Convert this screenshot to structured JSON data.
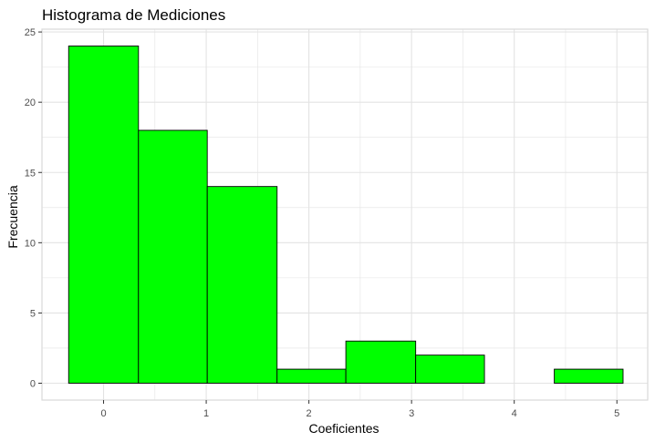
{
  "chart_data": {
    "type": "bar",
    "title": "Histograma de Mediciones",
    "xlabel": "Coeficientes",
    "ylabel": "Frecuencia",
    "x_ticks": [
      0,
      1,
      2,
      3,
      4,
      5
    ],
    "y_ticks": [
      0,
      5,
      10,
      15,
      20,
      25
    ],
    "xlim": [
      -0.6,
      5.3
    ],
    "ylim": [
      -1.2,
      25.2
    ],
    "bins": [
      {
        "x0": -0.34,
        "x1": 0.34,
        "count": 24
      },
      {
        "x0": 0.34,
        "x1": 1.01,
        "count": 18
      },
      {
        "x0": 1.01,
        "x1": 1.69,
        "count": 14
      },
      {
        "x0": 1.69,
        "x1": 2.36,
        "count": 1
      },
      {
        "x0": 2.36,
        "x1": 3.04,
        "count": 3
      },
      {
        "x0": 3.04,
        "x1": 3.71,
        "count": 2
      },
      {
        "x0": 3.71,
        "x1": 4.39,
        "count": 0
      },
      {
        "x0": 4.39,
        "x1": 5.06,
        "count": 1
      }
    ],
    "bar_fill": "#00ff00",
    "bar_stroke": "#000000",
    "grid": true,
    "panel_border": "#d9d9d9",
    "grid_color": "#e3e3e3"
  }
}
